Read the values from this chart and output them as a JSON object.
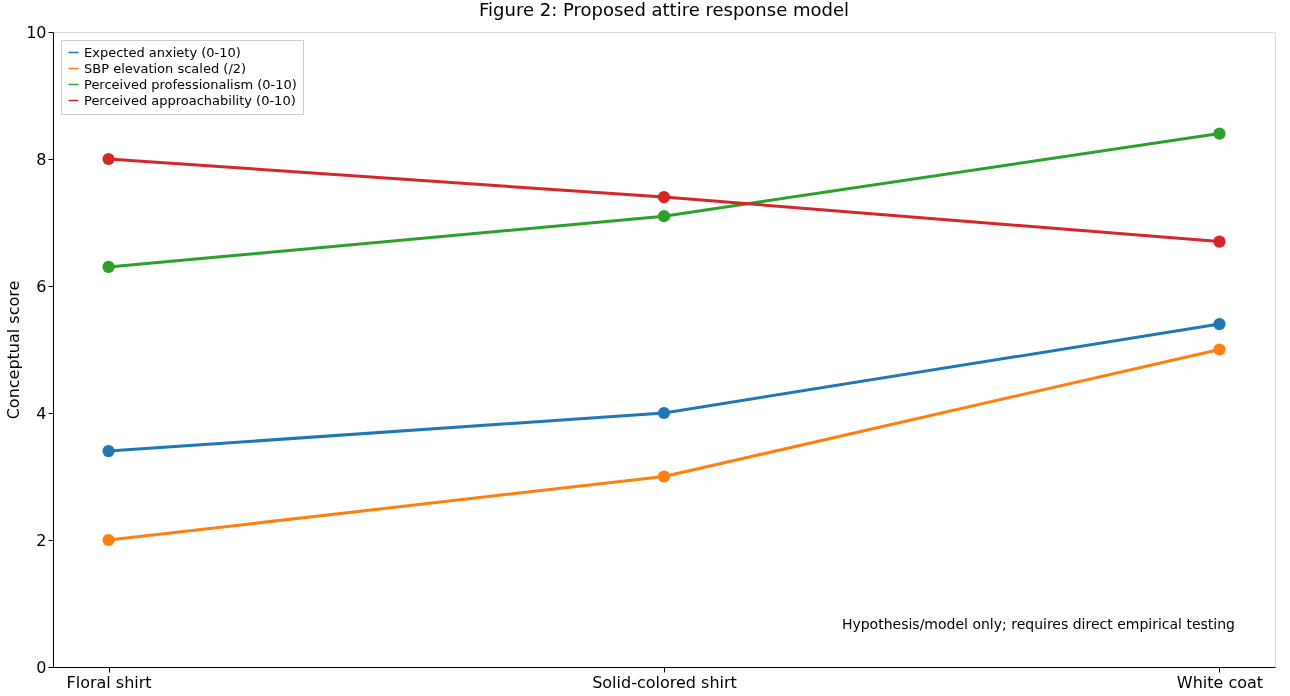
{
  "chart_data": {
    "type": "line",
    "title": "Figure 2: Proposed attire response model",
    "ylabel": "Conceptual score",
    "categories": [
      "Floral shirt",
      "Solid-colored shirt",
      "White coat"
    ],
    "series": [
      {
        "name": "Expected anxiety (0-10)",
        "color": "#1f77b4",
        "values": [
          3.4,
          4.0,
          5.4
        ]
      },
      {
        "name": "SBP elevation scaled (/2)",
        "color": "#ff7f0e",
        "values": [
          2.0,
          3.0,
          5.0
        ]
      },
      {
        "name": "Perceived professionalism (0-10)",
        "color": "#2ca02c",
        "values": [
          6.3,
          7.1,
          8.4
        ]
      },
      {
        "name": "Perceived approachability (0-10)",
        "color": "#d62728",
        "values": [
          8.0,
          7.4,
          6.7
        ]
      }
    ],
    "ylim": [
      0,
      10
    ],
    "yticks": [
      0,
      2,
      4,
      6,
      8,
      10
    ],
    "grid": false,
    "legend": "top left",
    "marker": "circle",
    "line_style": "solid",
    "annotations": [
      "Hypothesis/model only; requires direct empirical testing"
    ]
  }
}
